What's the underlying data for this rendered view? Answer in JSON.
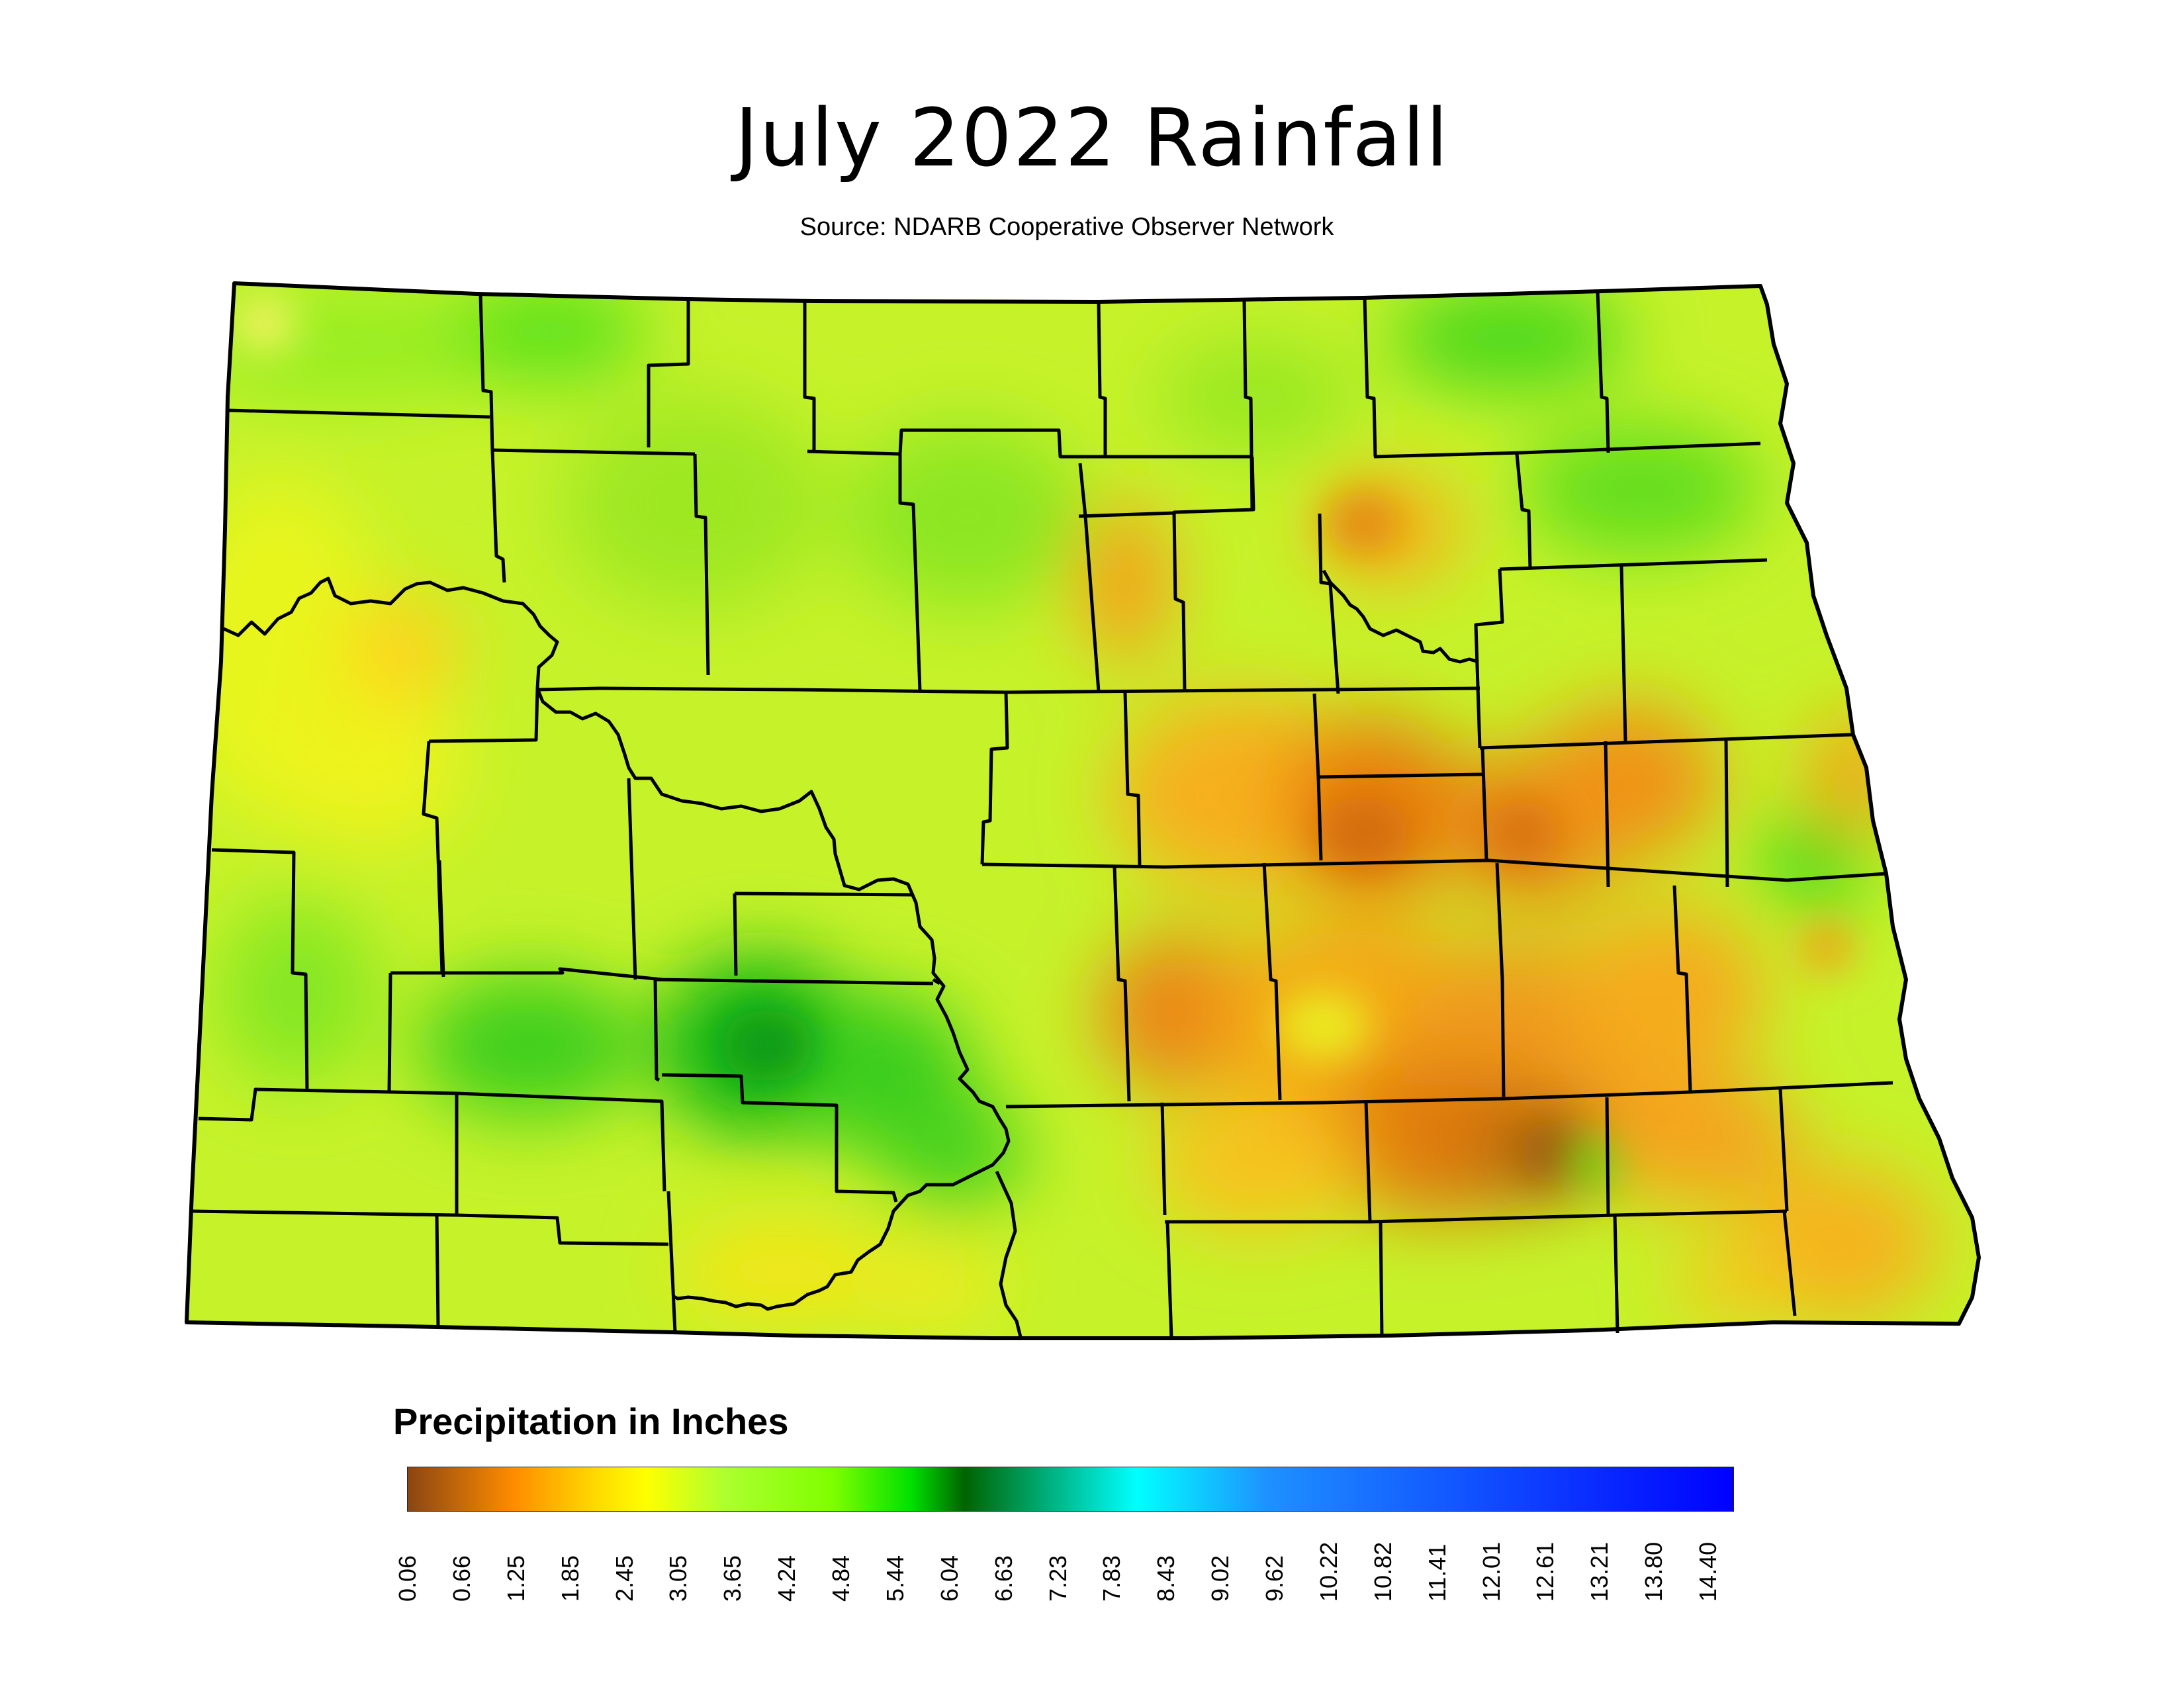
{
  "map": {
    "title": "July 2022 Rainfall",
    "subtitle": "Source: NDARB Cooperative Observer Network",
    "region": "North Dakota"
  },
  "legend": {
    "title": "Precipitation in Inches",
    "ticks": [
      "0.06",
      "0.66",
      "1.25",
      "1.85",
      "2.45",
      "3.05",
      "3.65",
      "4.24",
      "4.84",
      "5.44",
      "6.04",
      "6.63",
      "7.23",
      "7.83",
      "8.43",
      "9.02",
      "9.62",
      "10.22",
      "10.82",
      "11.41",
      "12.01",
      "12.61",
      "13.21",
      "13.80",
      "14.40"
    ],
    "colors": [
      "#8b4513",
      "#ff8c00",
      "#ffd700",
      "#ffff00",
      "#adff2f",
      "#7fff00",
      "#00e000",
      "#006400",
      "#00ffff",
      "#1e90ff",
      "#0000ff"
    ]
  }
}
